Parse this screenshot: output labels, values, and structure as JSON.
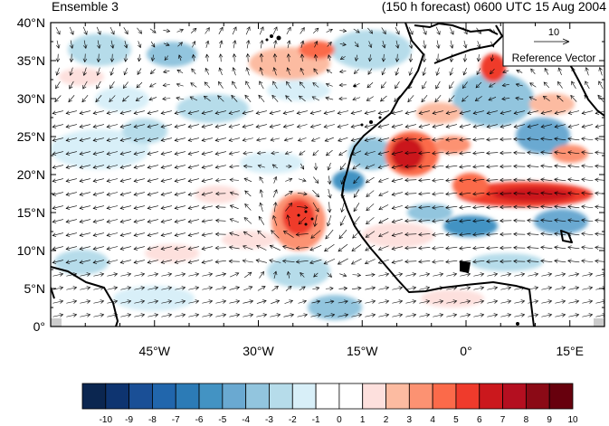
{
  "titles": {
    "left": "Ensemble 3",
    "right": "(150 h forecast) 0600 UTC 15 Aug 2004"
  },
  "map": {
    "lon_range": [
      -60,
      20
    ],
    "lat_range": [
      0,
      40
    ],
    "lat_ticks": [
      "0°",
      "5°N",
      "10°N",
      "15°N",
      "20°N",
      "25°N",
      "30°N",
      "35°N",
      "40°N"
    ],
    "lon_ticks": [
      "45°W",
      "30°W",
      "15°W",
      "0°",
      "15°E"
    ],
    "reference_vector": {
      "value": "10",
      "label": "Reference Vector"
    }
  },
  "colorbar": {
    "labels": [
      "-10",
      "-9",
      "-8",
      "-7",
      "-6",
      "-5",
      "-4",
      "-3",
      "-2",
      "-1",
      "0",
      "1",
      "2",
      "3",
      "4",
      "5",
      "6",
      "7",
      "8",
      "9",
      "10"
    ],
    "colors": [
      "#0b2650",
      "#0e3470",
      "#1a4f96",
      "#2166ac",
      "#2c7bb6",
      "#4393c3",
      "#6aa9d1",
      "#92c5de",
      "#b6dcea",
      "#d8eff8",
      "#ffffff",
      "#ffffff",
      "#fde0dd",
      "#fcbba1",
      "#fc9272",
      "#fb6a4a",
      "#ef3b2c",
      "#cb181d",
      "#b40f20",
      "#8b0a16",
      "#67000d"
    ]
  }
}
